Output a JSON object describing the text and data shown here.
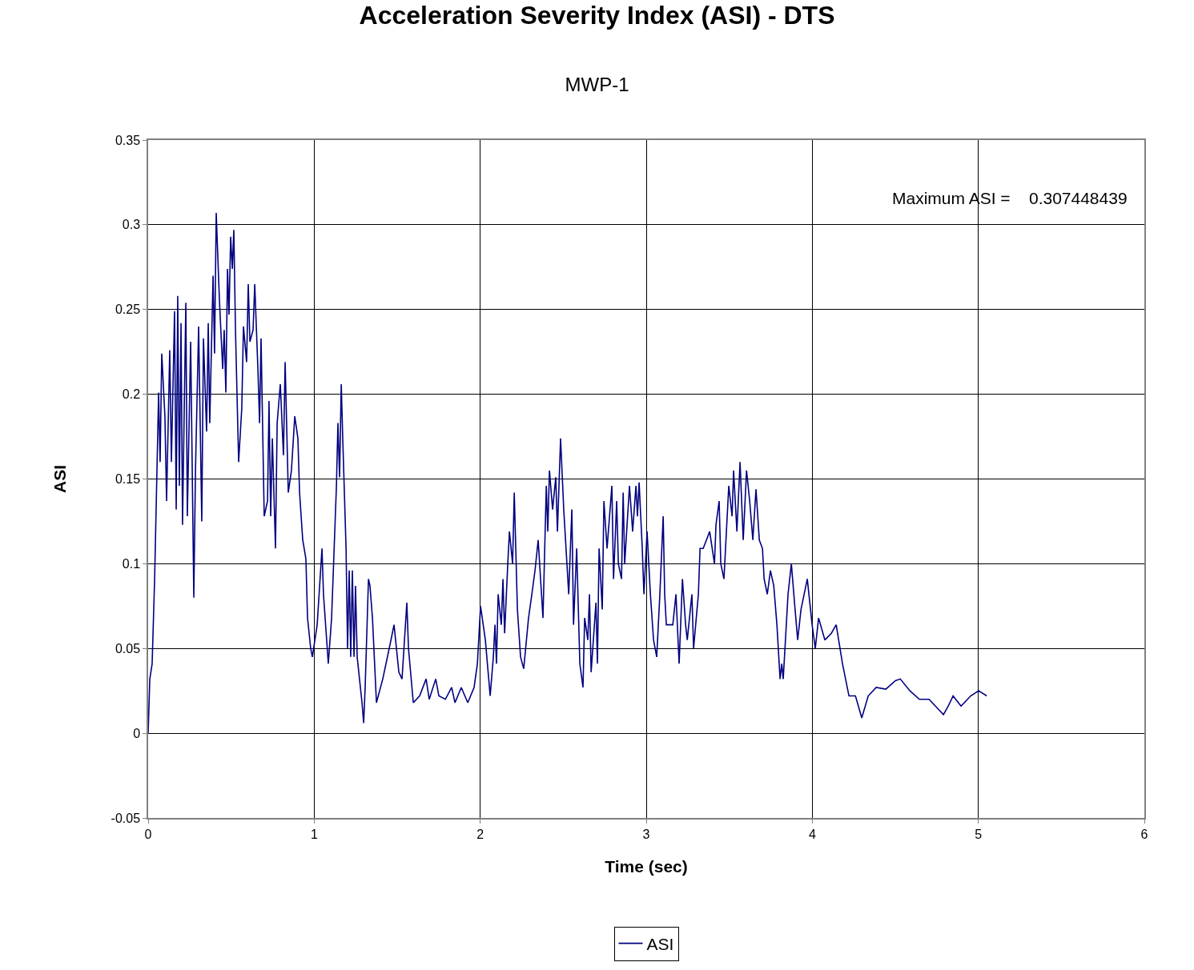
{
  "chart_data": {
    "type": "line",
    "title": "Acceleration Severity Index (ASI) - DTS",
    "subtitle": "MWP-1",
    "xlabel": "Time (sec)",
    "ylabel": "ASI",
    "annotations": [
      "Maximum ASI =    0.307448439"
    ],
    "xlim": [
      0,
      6
    ],
    "xticks": [
      0,
      1,
      2,
      3,
      4,
      5,
      6
    ],
    "ylim": [
      -0.05,
      0.35
    ],
    "yticks": [
      -0.05,
      0,
      0.05,
      0.1,
      0.15,
      0.2,
      0.25,
      0.3,
      0.35
    ],
    "grid": true,
    "legend": "bottom",
    "marker": "none",
    "line_style": "solid",
    "series": [
      {
        "name": "ASI",
        "color": "#000080",
        "x": [
          0,
          0.01,
          0.024,
          0.039,
          0.053,
          0.063,
          0.072,
          0.082,
          0.101,
          0.111,
          0.13,
          0.14,
          0.159,
          0.169,
          0.178,
          0.188,
          0.198,
          0.207,
          0.227,
          0.236,
          0.256,
          0.265,
          0.275,
          0.285,
          0.304,
          0.323,
          0.333,
          0.352,
          0.362,
          0.371,
          0.391,
          0.4,
          0.41,
          0.429,
          0.449,
          0.458,
          0.468,
          0.478,
          0.487,
          0.497,
          0.507,
          0.516,
          0.526,
          0.545,
          0.564,
          0.574,
          0.593,
          0.603,
          0.613,
          0.632,
          0.642,
          0.661,
          0.671,
          0.68,
          0.699,
          0.719,
          0.728,
          0.738,
          0.748,
          0.767,
          0.777,
          0.796,
          0.815,
          0.825,
          0.844,
          0.863,
          0.883,
          0.902,
          0.912,
          0.931,
          0.95,
          0.96,
          0.979,
          0.989,
          1.018,
          1.047,
          1.056,
          1.085,
          1.105,
          1.134,
          1.143,
          1.153,
          1.163,
          1.172,
          1.192,
          1.201,
          1.211,
          1.22,
          1.23,
          1.24,
          1.249,
          1.259,
          1.288,
          1.298,
          1.307,
          1.327,
          1.336,
          1.351,
          1.375,
          1.413,
          1.452,
          1.481,
          1.51,
          1.529,
          1.558,
          1.568,
          1.597,
          1.635,
          1.674,
          1.693,
          1.732,
          1.751,
          1.79,
          1.828,
          1.848,
          1.886,
          1.925,
          1.963,
          1.983,
          2.002,
          2.031,
          2.06,
          2.079,
          2.089,
          2.098,
          2.108,
          2.127,
          2.137,
          2.147,
          2.166,
          2.176,
          2.195,
          2.205,
          2.224,
          2.243,
          2.262,
          2.291,
          2.311,
          2.33,
          2.349,
          2.378,
          2.398,
          2.407,
          2.417,
          2.436,
          2.455,
          2.465,
          2.484,
          2.503,
          2.533,
          2.552,
          2.562,
          2.581,
          2.6,
          2.619,
          2.629,
          2.648,
          2.658,
          2.668,
          2.697,
          2.706,
          2.716,
          2.735,
          2.745,
          2.764,
          2.793,
          2.803,
          2.822,
          2.832,
          2.851,
          2.861,
          2.87,
          2.899,
          2.918,
          2.938,
          2.947,
          2.957,
          2.976,
          2.986,
          3.005,
          3.025,
          3.044,
          3.063,
          3.082,
          3.102,
          3.111,
          3.121,
          3.16,
          3.179,
          3.198,
          3.218,
          3.237,
          3.247,
          3.275,
          3.285,
          3.314,
          3.324,
          3.343,
          3.382,
          3.411,
          3.42,
          3.439,
          3.449,
          3.468,
          3.497,
          3.517,
          3.526,
          3.546,
          3.565,
          3.584,
          3.604,
          3.623,
          3.642,
          3.661,
          3.681,
          3.7,
          3.71,
          3.729,
          3.748,
          3.768,
          3.787,
          3.806,
          3.816,
          3.825,
          3.854,
          3.874,
          3.893,
          3.912,
          3.932,
          3.97,
          3.999,
          4.018,
          4.038,
          4.076,
          4.115,
          4.144,
          4.182,
          4.221,
          4.26,
          4.298,
          4.337,
          4.385,
          4.443,
          4.501,
          4.53,
          4.588,
          4.645,
          4.703,
          4.761,
          4.79,
          4.819,
          4.848,
          4.896,
          4.954,
          5.002,
          5.051
        ],
        "values": [
          0,
          0.032,
          0.041,
          0.091,
          0.155,
          0.201,
          0.16,
          0.224,
          0.187,
          0.137,
          0.226,
          0.16,
          0.249,
          0.132,
          0.258,
          0.146,
          0.242,
          0.123,
          0.254,
          0.128,
          0.231,
          0.16,
          0.08,
          0.155,
          0.24,
          0.125,
          0.233,
          0.178,
          0.242,
          0.183,
          0.27,
          0.224,
          0.307,
          0.256,
          0.215,
          0.238,
          0.201,
          0.274,
          0.247,
          0.293,
          0.274,
          0.297,
          0.238,
          0.16,
          0.192,
          0.24,
          0.219,
          0.265,
          0.231,
          0.238,
          0.265,
          0.215,
          0.183,
          0.233,
          0.128,
          0.137,
          0.196,
          0.128,
          0.174,
          0.109,
          0.183,
          0.206,
          0.164,
          0.219,
          0.142,
          0.155,
          0.187,
          0.174,
          0.142,
          0.114,
          0.103,
          0.068,
          0.05,
          0.045,
          0.064,
          0.109,
          0.082,
          0.041,
          0.068,
          0.146,
          0.183,
          0.151,
          0.206,
          0.174,
          0.109,
          0.05,
          0.096,
          0.045,
          0.096,
          0.045,
          0.087,
          0.045,
          0.018,
          0.006,
          0.027,
          0.091,
          0.087,
          0.068,
          0.018,
          0.032,
          0.05,
          0.064,
          0.036,
          0.032,
          0.077,
          0.05,
          0.018,
          0.022,
          0.032,
          0.02,
          0.032,
          0.022,
          0.02,
          0.027,
          0.018,
          0.027,
          0.018,
          0.027,
          0.041,
          0.075,
          0.055,
          0.022,
          0.045,
          0.064,
          0.041,
          0.082,
          0.064,
          0.091,
          0.059,
          0.1,
          0.119,
          0.1,
          0.142,
          0.073,
          0.045,
          0.038,
          0.068,
          0.082,
          0.096,
          0.114,
          0.068,
          0.146,
          0.119,
          0.155,
          0.132,
          0.151,
          0.119,
          0.174,
          0.132,
          0.082,
          0.132,
          0.064,
          0.109,
          0.041,
          0.027,
          0.068,
          0.055,
          0.082,
          0.036,
          0.077,
          0.041,
          0.109,
          0.073,
          0.137,
          0.109,
          0.146,
          0.091,
          0.137,
          0.1,
          0.091,
          0.142,
          0.1,
          0.146,
          0.119,
          0.146,
          0.128,
          0.148,
          0.109,
          0.082,
          0.119,
          0.082,
          0.055,
          0.045,
          0.082,
          0.128,
          0.082,
          0.064,
          0.064,
          0.082,
          0.041,
          0.091,
          0.064,
          0.055,
          0.082,
          0.05,
          0.082,
          0.109,
          0.109,
          0.119,
          0.1,
          0.123,
          0.137,
          0.1,
          0.091,
          0.146,
          0.128,
          0.155,
          0.119,
          0.16,
          0.114,
          0.155,
          0.137,
          0.114,
          0.144,
          0.114,
          0.109,
          0.091,
          0.082,
          0.096,
          0.087,
          0.064,
          0.032,
          0.041,
          0.032,
          0.082,
          0.1,
          0.077,
          0.055,
          0.073,
          0.091,
          0.064,
          0.05,
          0.068,
          0.055,
          0.059,
          0.064,
          0.041,
          0.022,
          0.022,
          0.009,
          0.022,
          0.027,
          0.026,
          0.031,
          0.032,
          0.025,
          0.02,
          0.02,
          0.014,
          0.011,
          0.016,
          0.022,
          0.016,
          0.022,
          0.025,
          0.022
        ]
      }
    ]
  }
}
